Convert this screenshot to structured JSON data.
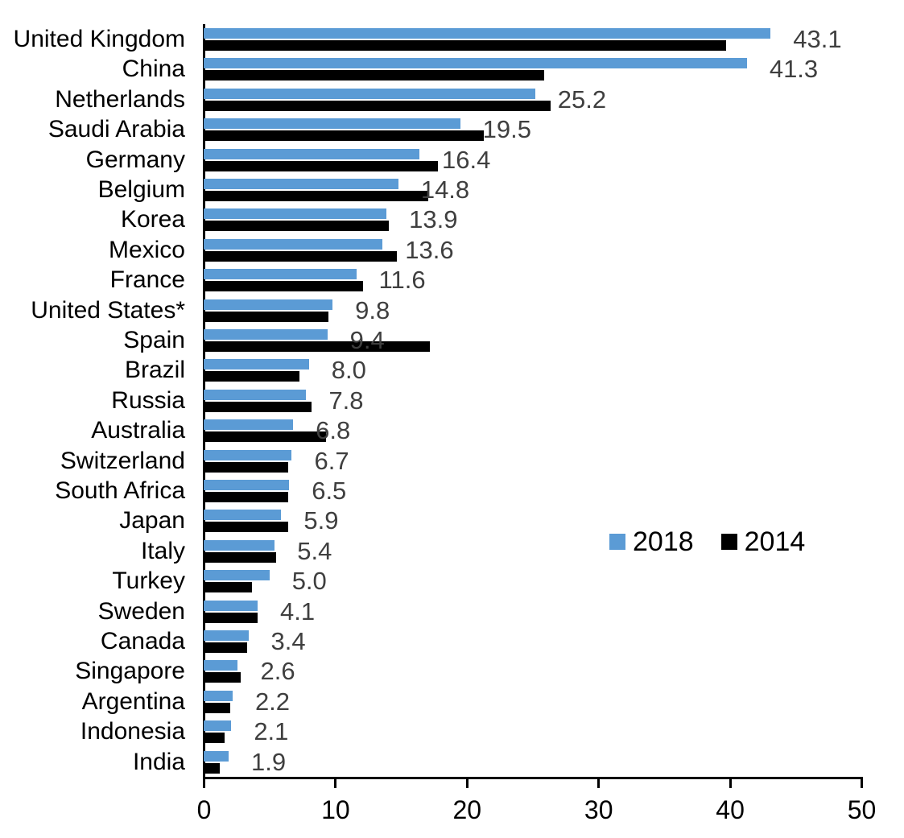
{
  "chart_data": {
    "type": "bar",
    "orientation": "horizontal",
    "title": "",
    "xlabel": "",
    "ylabel": "",
    "xlim": [
      0,
      50
    ],
    "x_ticks": [
      0,
      10,
      20,
      30,
      40,
      50
    ],
    "grid": false,
    "legend_position": "center-right",
    "categories": [
      "United Kingdom",
      "China",
      "Netherlands",
      "Saudi Arabia",
      "Germany",
      "Belgium",
      "Korea",
      "Mexico",
      "France",
      "United States*",
      "Spain",
      "Brazil",
      "Russia",
      "Australia",
      "Switzerland",
      "South Africa",
      "Japan",
      "Italy",
      "Turkey",
      "Sweden",
      "Canada",
      "Singapore",
      "Argentina",
      "Indonesia",
      "India"
    ],
    "series": [
      {
        "name": "2018",
        "color": "#5B9BD5",
        "values": [
          43.1,
          41.3,
          25.2,
          19.5,
          16.4,
          14.8,
          13.9,
          13.6,
          11.6,
          9.8,
          9.4,
          8.0,
          7.8,
          6.8,
          6.7,
          6.5,
          5.9,
          5.4,
          5.0,
          4.1,
          3.4,
          2.6,
          2.2,
          2.1,
          1.9
        ]
      },
      {
        "name": "2014",
        "color": "#000000",
        "values": [
          39.7,
          25.9,
          26.4,
          21.3,
          17.8,
          17.1,
          14.1,
          14.7,
          12.1,
          9.5,
          17.2,
          7.3,
          8.2,
          9.3,
          6.4,
          6.4,
          6.4,
          5.5,
          3.7,
          4.1,
          3.3,
          2.8,
          2.0,
          1.6,
          1.2
        ]
      }
    ],
    "value_labels": [
      "43.1",
      "41.3",
      "25.2",
      "19.5",
      "16.4",
      "14.8",
      "13.9",
      "13.6",
      "11.6",
      "9.8",
      "9.4",
      "8.0",
      "7.8",
      "6.8",
      "6.7",
      "6.5",
      "5.9",
      "5.4",
      "5.0",
      "4.1",
      "3.4",
      "2.6",
      "2.2",
      "2.1",
      "1.9"
    ],
    "value_labels_series": "2018",
    "value_label_color": "#3F3F3F"
  },
  "colors": {
    "background": "#FFFFFF",
    "axis": "#000000",
    "category_text": "#000000",
    "tick_text": "#000000",
    "bar_2018": "#5B9BD5",
    "bar_2014": "#000000"
  }
}
